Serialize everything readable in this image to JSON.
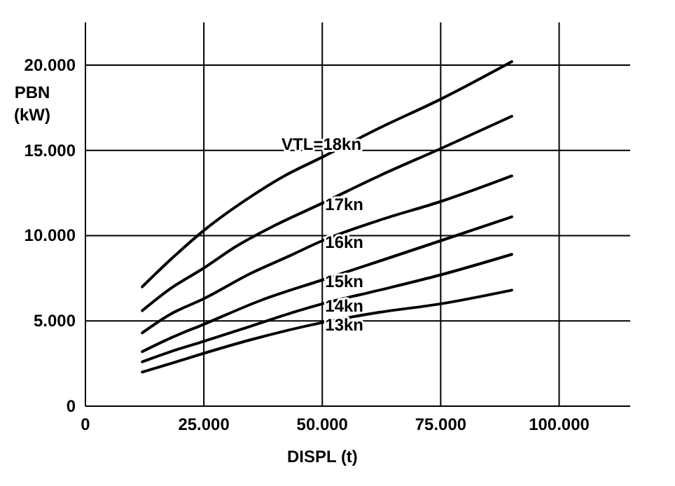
{
  "chart_data": {
    "type": "line",
    "xlabel": "DISPL (t)",
    "ylabel": "PBN (kW)",
    "xlim": [
      0,
      115000
    ],
    "xticks": [
      0,
      {
        "value": 25000,
        "label": "25.000"
      },
      {
        "value": 50000,
        "label": "50.000"
      },
      {
        "value": 75000,
        "label": "75.000"
      },
      {
        "value": 100000,
        "label": "100.000"
      }
    ],
    "ylim": [
      0,
      22500
    ],
    "yticks": [
      0,
      {
        "value": 5000,
        "label": "5.000"
      },
      {
        "value": 10000,
        "label": "10.000"
      },
      {
        "value": 15000,
        "label": "15.000"
      },
      {
        "value": 20000,
        "label": "20.000"
      }
    ],
    "grid": true,
    "line_style": "solid",
    "series": [
      {
        "name": "VTL=18kn",
        "color": "#000000",
        "x": [
          12000,
          18000,
          25000,
          35000,
          42000,
          50000,
          62000,
          75000,
          90000
        ],
        "values": [
          7000,
          8600,
          10300,
          12300,
          13500,
          14600,
          16300,
          18000,
          20200
        ]
      },
      {
        "name": "17kn",
        "color": "#000000",
        "x": [
          12000,
          18000,
          25000,
          32000,
          40000,
          50000,
          62000,
          75000,
          90000
        ],
        "values": [
          5600,
          6900,
          8100,
          9400,
          10600,
          11900,
          13500,
          15100,
          17000
        ]
      },
      {
        "name": "16kn",
        "color": "#000000",
        "x": [
          12000,
          18000,
          25000,
          35000,
          43000,
          50000,
          62000,
          75000,
          90000
        ],
        "values": [
          4300,
          5400,
          6300,
          7800,
          8800,
          9700,
          10900,
          12000,
          13500
        ]
      },
      {
        "name": "15kn",
        "color": "#000000",
        "x": [
          12000,
          18000,
          25000,
          37000,
          50000,
          62000,
          75000,
          90000
        ],
        "values": [
          3200,
          4000,
          4800,
          6200,
          7400,
          8500,
          9700,
          11100
        ]
      },
      {
        "name": "14kn",
        "color": "#000000",
        "x": [
          12000,
          18000,
          25000,
          35000,
          45000,
          50000,
          62000,
          75000,
          90000
        ],
        "values": [
          2600,
          3200,
          3800,
          4700,
          5600,
          6000,
          6800,
          7700,
          8900
        ]
      },
      {
        "name": "13kn",
        "color": "#000000",
        "x": [
          12000,
          18000,
          25000,
          35000,
          50000,
          62000,
          75000,
          90000
        ],
        "values": [
          2000,
          2500,
          3100,
          3900,
          4900,
          5500,
          6000,
          6800
        ]
      }
    ]
  }
}
